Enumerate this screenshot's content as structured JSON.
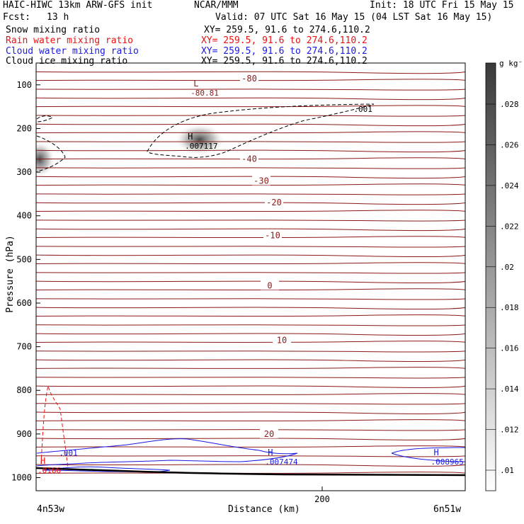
{
  "header": {
    "model_title": "HAIC-HIWC 13km ARW-GFS init",
    "center": "NCAR/MMM",
    "init": "Init: 18 UTC Fri 15 May 15",
    "fcst_label": "Fcst:",
    "fcst_value": "13 h",
    "valid": "Valid: 07 UTC Sat 16 May 15 (04 LST Sat 16 May 15)"
  },
  "fields": [
    {
      "label": "Snow mixing ratio",
      "xy": "XY= 259.5, 91.6 to 274.6,110.2",
      "color": "#000000"
    },
    {
      "label": "Rain water mixing ratio",
      "xy": "XY= 259.5, 91.6 to 274.6,110.2",
      "color": "#ee1111"
    },
    {
      "label": "Cloud water mixing ratio",
      "xy": "XY= 259.5, 91.6 to 274.6,110.2",
      "color": "#1a1ae6"
    },
    {
      "label": "Cloud ice mixing ratio",
      "xy": "XY= 259.5, 91.6 to 274.6,110.2",
      "color": "#000000"
    }
  ],
  "chart_data": {
    "type": "heatmap",
    "xlabel": "Distance (km)",
    "ylabel": "Pressure (hPa)",
    "xlim": [
      0,
      300
    ],
    "ylim": [
      1030,
      50
    ],
    "x_ticks": [
      {
        "value": 200,
        "label": "200"
      }
    ],
    "x_end_labels": {
      "left": "4n53w",
      "right": "6n51w"
    },
    "y_ticks": [
      {
        "value": 100,
        "label": "100"
      },
      {
        "value": 200,
        "label": "200"
      },
      {
        "value": 300,
        "label": "300"
      },
      {
        "value": 400,
        "label": "400"
      },
      {
        "value": 500,
        "label": "500"
      },
      {
        "value": 600,
        "label": "600"
      },
      {
        "value": 700,
        "label": "700"
      },
      {
        "value": 800,
        "label": "800"
      },
      {
        "value": 900,
        "label": "900"
      },
      {
        "value": 1000,
        "label": "1000"
      }
    ],
    "colorbar": {
      "unit": "g kg⁻¹",
      "ticks": [
        ".01",
        ".012",
        ".014",
        ".016",
        ".018",
        ".02",
        ".022",
        ".024",
        ".026",
        ".028"
      ]
    },
    "temperature_contours": [
      {
        "p": 86,
        "label": "-80"
      },
      {
        "p": 270,
        "label": "-40"
      },
      {
        "p": 320,
        "label": "-30"
      },
      {
        "p": 370,
        "label": "-20"
      },
      {
        "p": 445,
        "label": "-10"
      },
      {
        "p": 560,
        "label": "0"
      },
      {
        "p": 685,
        "label": "10"
      },
      {
        "p": 900,
        "label": "20"
      }
    ],
    "extrema": [
      {
        "type": "L",
        "value": "-80.81",
        "x": 110,
        "p": 110,
        "color": "#8b1a1a"
      },
      {
        "type": "H",
        "value": ".007117",
        "x": 106,
        "p": 232,
        "color": "#000000"
      },
      {
        "type": "H",
        "value": ".007474",
        "x": 162,
        "p": 955,
        "color": "#1a1ae6"
      },
      {
        "type": "H",
        "value": ".008965",
        "x": 278,
        "p": 955,
        "color": "#1a1ae6"
      },
      {
        "type": "H",
        "value": ".0166",
        "x": 3,
        "p": 975,
        "color": "#ee1111"
      }
    ],
    "contour_labels": [
      {
        "value": ".001",
        "x": 222,
        "p": 162,
        "color": "#000000"
      },
      {
        "value": ".001",
        "x": 16,
        "p": 950,
        "color": "#1a1ae6"
      }
    ]
  }
}
